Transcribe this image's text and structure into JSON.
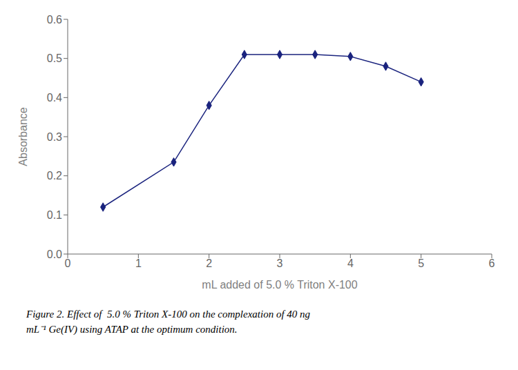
{
  "chart_data": {
    "type": "line",
    "x": [
      0.5,
      1.5,
      2.0,
      2.5,
      3.0,
      3.5,
      4.0,
      4.5,
      5.0
    ],
    "values": [
      0.12,
      0.235,
      0.38,
      0.51,
      0.51,
      0.51,
      0.505,
      0.48,
      0.44
    ],
    "color": "#1a237e",
    "marker": "diamond",
    "line_style": "solid",
    "xlabel": "mL added of 5.0 % Triton X-100",
    "ylabel": "Absorbance",
    "xlim": [
      0,
      6
    ],
    "ylim": [
      0,
      0.6
    ],
    "xticks": [
      0,
      1,
      2,
      3,
      4,
      5,
      6
    ],
    "yticks": [
      {
        "value": 0,
        "label": "0.0"
      },
      0.1,
      0.2,
      0.3,
      0.4,
      0.5,
      0.6
    ],
    "grid": false,
    "annotations": [
      "Figure 2. Effect of  5.0 % Triton X-100 on the complexation of 40 ng",
      "mL⁻¹ Ge(IV) using ATAP at the optimum condition."
    ]
  }
}
